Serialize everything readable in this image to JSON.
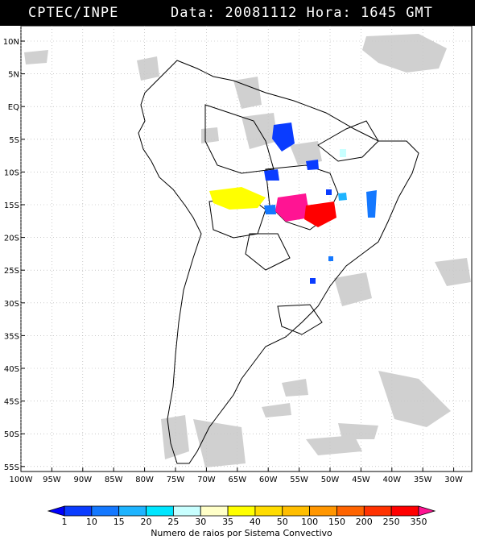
{
  "header": {
    "source": "CPTEC/INPE",
    "date_label": "Data:",
    "date": "20081112",
    "time_label": "Hora:",
    "time": "1645 GMT"
  },
  "axes": {
    "lat_labels": [
      "10N",
      "5N",
      "EQ",
      "5S",
      "10S",
      "15S",
      "20S",
      "25S",
      "30S",
      "35S",
      "40S",
      "45S",
      "50S",
      "55S"
    ],
    "lon_labels": [
      "100W",
      "95W",
      "90W",
      "85W",
      "80W",
      "75W",
      "70W",
      "65W",
      "60W",
      "55W",
      "50W",
      "45W",
      "40W",
      "35W",
      "30W"
    ]
  },
  "colorbar": {
    "title": "Numero de raios por Sistema Convectivo",
    "labels": [
      "1",
      "10",
      "15",
      "20",
      "25",
      "30",
      "35",
      "40",
      "50",
      "100",
      "150",
      "200",
      "250",
      "350"
    ],
    "colors": [
      "#0000ff",
      "#0a3cff",
      "#1478ff",
      "#1eb4ff",
      "#00e6ff",
      "#c8ffff",
      "#ffffc8",
      "#ffff00",
      "#ffdc00",
      "#ffbe00",
      "#ff9600",
      "#ff6400",
      "#ff3200",
      "#ff0000",
      "#ff1493"
    ]
  }
}
